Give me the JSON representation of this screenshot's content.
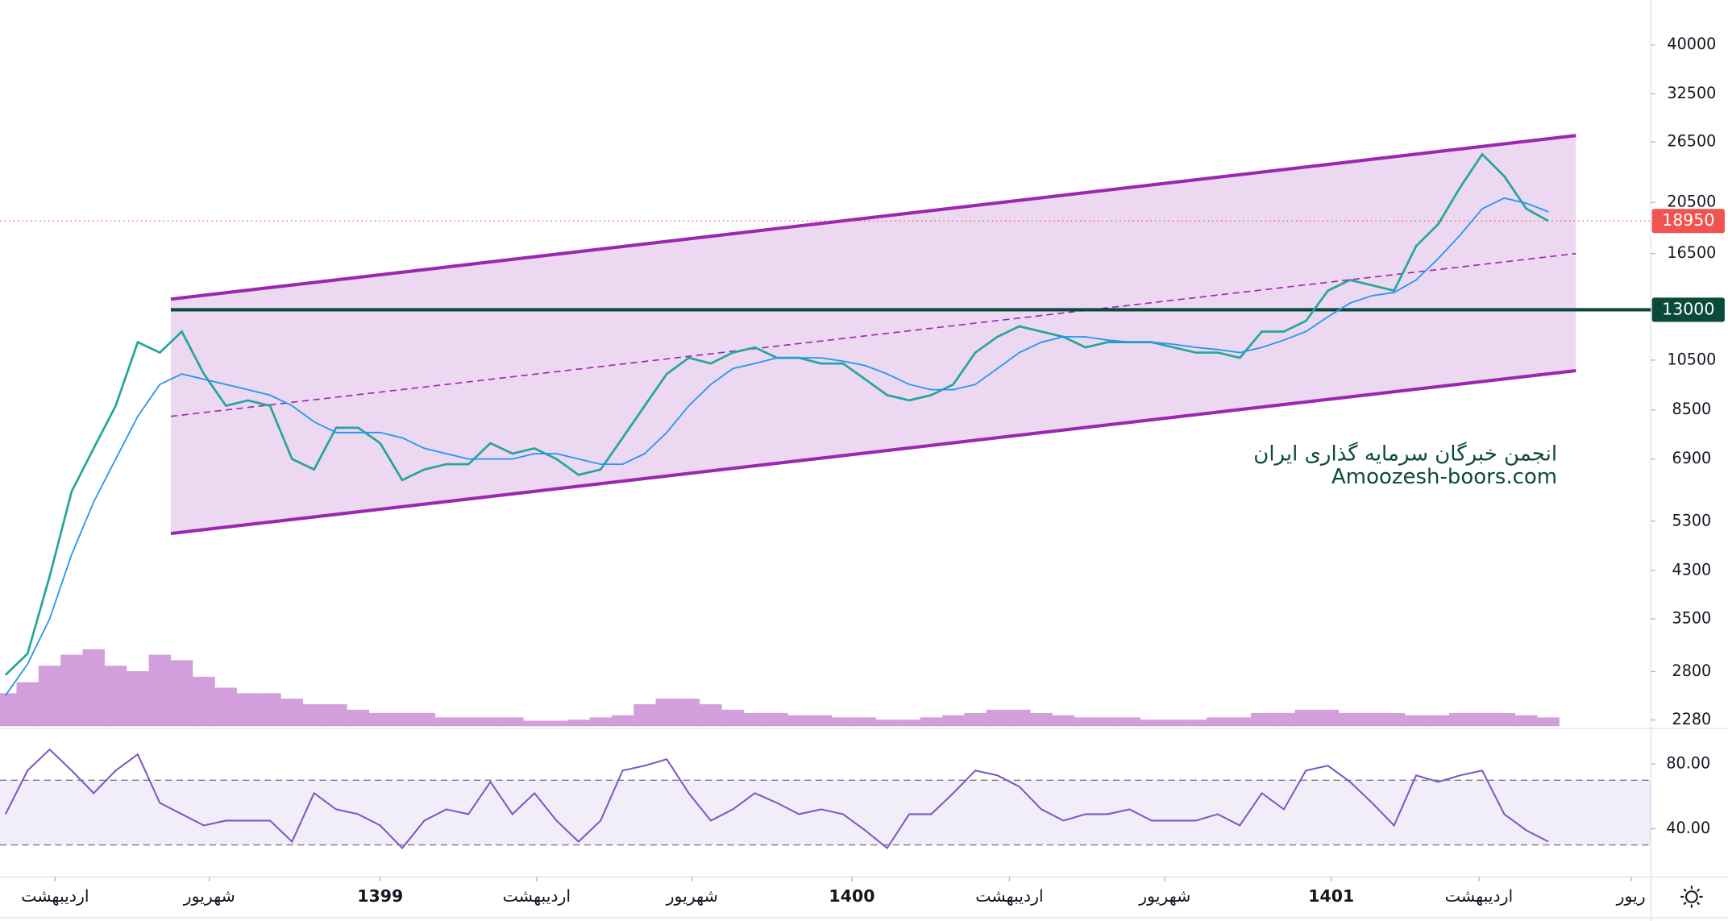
{
  "chart_data": {
    "type": "line",
    "log_y": true,
    "x": [
      0,
      1,
      2,
      3,
      4,
      5,
      6,
      7,
      8,
      9,
      10,
      11,
      12,
      13,
      14,
      15,
      16,
      17,
      18,
      19,
      20,
      21,
      22,
      23,
      24,
      25,
      26,
      27,
      28,
      29,
      30,
      31,
      32,
      33,
      34,
      35,
      36,
      37,
      38,
      39,
      40,
      41,
      42,
      43,
      44,
      45,
      46,
      47,
      48,
      49,
      50,
      51,
      52,
      53,
      54,
      55,
      56,
      57,
      58,
      59,
      60,
      61,
      62,
      63,
      64,
      65,
      66,
      67,
      68,
      69,
      70
    ],
    "xlim": [
      -0.25,
      74.65
    ],
    "xticks": [
      {
        "value": 2.25,
        "label": "اردیبهشت"
      },
      {
        "value": 9.25,
        "label": "شهریور"
      },
      {
        "value": 17,
        "label": "1399"
      },
      {
        "value": 24.1,
        "label": "اردیبهشت"
      },
      {
        "value": 31.15,
        "label": "شهریور"
      },
      {
        "value": 38.4,
        "label": "1400"
      },
      {
        "value": 45.55,
        "label": "اردیبهشت"
      },
      {
        "value": 52.6,
        "label": "شهریور"
      },
      {
        "value": 60.15,
        "label": "1401"
      },
      {
        "value": 66.85,
        "label": "اردیبهشت"
      },
      {
        "value": 73.75,
        "label": "ریور"
      }
    ],
    "ylim": [
      2220,
      48400
    ],
    "yticks": [
      40000,
      32500,
      26500,
      20500,
      16500,
      10500,
      8500,
      6900,
      5300,
      4300,
      3500,
      2800,
      2280
    ],
    "series": [
      {
        "color": "#26a69a",
        "values": [
          2760,
          3020,
          4190,
          6010,
          7220,
          8650,
          11330,
          10840,
          11850,
          9900,
          8650,
          8850,
          8650,
          6900,
          6600,
          7880,
          7880,
          7380,
          6310,
          6600,
          6750,
          6750,
          7380,
          7060,
          7220,
          6900,
          6450,
          6600,
          7550,
          8650,
          9900,
          10600,
          10350,
          10840,
          11080,
          10600,
          10600,
          10350,
          10350,
          9680,
          9050,
          8850,
          9050,
          9470,
          10840,
          11590,
          12120,
          11850,
          11590,
          11080,
          11330,
          11330,
          11330,
          11080,
          10840,
          10840,
          10600,
          11850,
          11850,
          12400,
          14100,
          14750,
          14420,
          14100,
          17030,
          18690,
          21860,
          25150,
          22910,
          19960,
          18950
        ]
      },
      {
        "color": "#2196f3",
        "values": [
          2530,
          2890,
          3500,
          4600,
          5750,
          6900,
          8270,
          9470,
          9900,
          9680,
          9470,
          9260,
          9050,
          8650,
          8080,
          7720,
          7720,
          7720,
          7550,
          7220,
          7060,
          6900,
          6900,
          6900,
          7060,
          7060,
          6900,
          6750,
          6750,
          7060,
          7720,
          8650,
          9470,
          10130,
          10350,
          10600,
          10600,
          10600,
          10450,
          10260,
          9900,
          9470,
          9260,
          9260,
          9470,
          10130,
          10840,
          11330,
          11590,
          11590,
          11430,
          11330,
          11330,
          11230,
          11080,
          10980,
          10840,
          11080,
          11430,
          11850,
          12620,
          13370,
          13800,
          13990,
          14750,
          16150,
          17850,
          19960,
          20880,
          20430,
          19700
        ]
      }
    ],
    "volume": {
      "color": "#9c27b0",
      "lim": [
        0,
        100
      ],
      "values": [
        30,
        40,
        55,
        65,
        70,
        55,
        50,
        65,
        60,
        45,
        35,
        30,
        30,
        25,
        20,
        20,
        15,
        12,
        12,
        12,
        8,
        8,
        8,
        8,
        5,
        5,
        6,
        8,
        10,
        20,
        25,
        25,
        20,
        15,
        12,
        12,
        10,
        10,
        8,
        8,
        6,
        6,
        8,
        10,
        12,
        15,
        15,
        12,
        10,
        8,
        8,
        8,
        6,
        6,
        6,
        8,
        8,
        12,
        12,
        15,
        15,
        12,
        12,
        12,
        10,
        10,
        12,
        12,
        12,
        10,
        8
      ]
    },
    "rsi": {
      "color": "#7e57c2",
      "ylim": [
        11.5,
        100
      ],
      "yticks": [
        {
          "value": 80,
          "label": "80.00"
        },
        {
          "value": 40,
          "label": "40.00"
        }
      ],
      "bands": [
        70,
        30
      ],
      "values": [
        49,
        76,
        89,
        76,
        62,
        76,
        86,
        56,
        49,
        42,
        45,
        45,
        45,
        32,
        62,
        52,
        49,
        42,
        28,
        45,
        52,
        49,
        69,
        49,
        62,
        45,
        32,
        45,
        76,
        79,
        83,
        62,
        45,
        52,
        62,
        56,
        49,
        52,
        49,
        39,
        28,
        49,
        49,
        62,
        76,
        73,
        66,
        52,
        45,
        49,
        49,
        52,
        45,
        45,
        45,
        49,
        42,
        62,
        52,
        76,
        79,
        69,
        56,
        42,
        73,
        69,
        73,
        76,
        49,
        39,
        32
      ]
    },
    "channel": {
      "color": "#9c27b0",
      "x": [
        7.5,
        71.25
      ],
      "upper": [
        13600,
        27230
      ],
      "middle": [
        8270,
        16500
      ],
      "lower": [
        5030,
        10040
      ]
    },
    "hline": {
      "value": 13000,
      "x": 7.5,
      "color": "#0b4a3a"
    },
    "last_price": {
      "value": 18950,
      "color": "#f05350"
    },
    "watermark": [
      "انجمن خبرگان سرمایه گذاری ایران",
      "Amoozesh-boors.com"
    ]
  }
}
